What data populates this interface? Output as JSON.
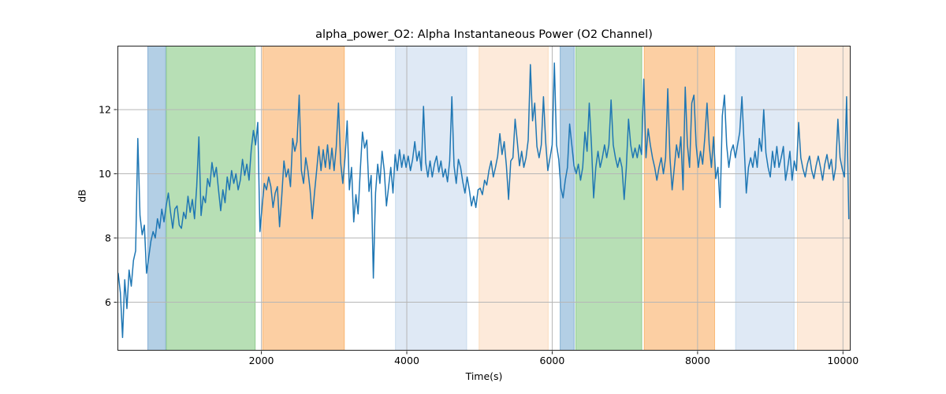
{
  "figure": {
    "title": "alpha_power_O2: Alpha Instantaneous Power (O2 Channel)",
    "xlabel": "Time(s)",
    "ylabel": "dB"
  },
  "chart_data": {
    "type": "line",
    "title": "alpha_power_O2: Alpha Instantaneous Power (O2 Channel)",
    "xlabel": "Time(s)",
    "ylabel": "dB",
    "grid": true,
    "legend": false,
    "xlim": [
      20,
      10105
    ],
    "ylim": [
      4.49,
      13.99
    ],
    "xticks": [
      2000,
      4000,
      6000,
      8000,
      10000
    ],
    "yticks": [
      6,
      8,
      10,
      12
    ],
    "colors": {
      "line": "#1f77b4",
      "grid": "#b6b6b6",
      "spine": "#222222",
      "band_blue": "#b3cfe5",
      "band_blue_edge": "#8db4d6",
      "band_green": "#b7dfb5",
      "band_green_edge": "#93cd92",
      "band_orange": "#fccfa3",
      "band_orange_edge": "#fab977",
      "band_lightblue": "#dfe9f5",
      "band_lightblue_edge": "#c9dcee",
      "band_lightorange": "#fdeada",
      "band_lightorange_edge": "#fbdfc2"
    },
    "bands": [
      {
        "name": "span-blue-1",
        "start": 433,
        "end": 688,
        "color": "#b3cfe5",
        "edge": "#8db4d6"
      },
      {
        "name": "span-green-1",
        "start": 688,
        "end": 1919,
        "color": "#b7dfb5",
        "edge": "#93cd92"
      },
      {
        "name": "span-orange-1",
        "start": 2014,
        "end": 3145,
        "color": "#fccfa3",
        "edge": "#fab977"
      },
      {
        "name": "span-lightblue-1",
        "start": 3840,
        "end": 4828,
        "color": "#dfe9f5",
        "edge": "#c9dcee"
      },
      {
        "name": "span-lightorange-1",
        "start": 4990,
        "end": 5950,
        "color": "#fdeada",
        "edge": "#fbdfc2"
      },
      {
        "name": "span-blue-2",
        "start": 6105,
        "end": 6307,
        "color": "#b3cfe5",
        "edge": "#8db4d6"
      },
      {
        "name": "span-green-2",
        "start": 6320,
        "end": 7237,
        "color": "#b7dfb5",
        "edge": "#93cd92"
      },
      {
        "name": "span-orange-2",
        "start": 7262,
        "end": 8240,
        "color": "#fccfa3",
        "edge": "#fab977"
      },
      {
        "name": "span-lightblue-2",
        "start": 8519,
        "end": 9332,
        "color": "#dfe9f5",
        "edge": "#c9dcee"
      },
      {
        "name": "span-lightorange-2",
        "start": 9368,
        "end": 10105,
        "color": "#fdeada",
        "edge": "#fbdfc2"
      }
    ],
    "series": [
      {
        "name": "alpha_power_O2",
        "t_start": 30,
        "t_step": 30,
        "values": [
          6.9,
          6.3,
          4.9,
          6.7,
          5.8,
          7.0,
          6.5,
          7.3,
          7.6,
          11.1,
          8.7,
          8.1,
          8.4,
          6.9,
          7.4,
          7.9,
          8.2,
          8.0,
          8.6,
          8.3,
          8.9,
          8.5,
          9.0,
          9.4,
          8.8,
          8.3,
          8.9,
          9.0,
          8.4,
          8.3,
          8.8,
          8.6,
          9.3,
          8.8,
          9.2,
          8.6,
          9.6,
          11.15,
          8.7,
          9.3,
          9.1,
          9.85,
          9.6,
          10.35,
          9.9,
          10.2,
          9.5,
          8.85,
          9.5,
          9.1,
          9.9,
          9.5,
          10.1,
          9.7,
          10.0,
          9.5,
          9.8,
          10.45,
          9.95,
          10.3,
          9.8,
          10.75,
          11.35,
          10.9,
          11.6,
          8.2,
          9.0,
          9.7,
          9.5,
          9.9,
          9.6,
          8.95,
          9.4,
          9.6,
          8.35,
          9.3,
          10.4,
          9.9,
          10.15,
          9.6,
          11.1,
          10.7,
          11.0,
          12.45,
          10.1,
          9.7,
          10.5,
          10.1,
          9.5,
          8.6,
          9.4,
          10.1,
          10.85,
          10.1,
          10.75,
          10.2,
          10.9,
          10.15,
          10.8,
          10.1,
          10.85,
          12.2,
          10.35,
          9.7,
          10.5,
          11.65,
          9.5,
          10.2,
          8.5,
          9.35,
          8.75,
          10.1,
          11.3,
          10.8,
          11.05,
          9.45,
          9.95,
          6.75,
          9.4,
          10.3,
          9.7,
          10.7,
          10.1,
          9.0,
          9.6,
          10.2,
          9.4,
          10.6,
          10.1,
          10.75,
          10.2,
          10.6,
          10.2,
          10.55,
          10.1,
          10.45,
          11.0,
          10.4,
          10.7,
          10.1,
          12.1,
          10.35,
          9.9,
          10.4,
          9.9,
          10.3,
          10.55,
          10.05,
          10.4,
          9.9,
          10.15,
          9.75,
          10.4,
          12.4,
          10.25,
          9.7,
          10.45,
          10.2,
          9.75,
          9.4,
          9.9,
          9.5,
          9.0,
          9.3,
          8.95,
          9.5,
          9.55,
          9.35,
          9.8,
          9.65,
          10.1,
          10.4,
          9.9,
          10.2,
          10.55,
          11.25,
          10.6,
          11.0,
          10.25,
          9.2,
          10.4,
          10.5,
          11.7,
          11.0,
          10.25,
          10.7,
          10.2,
          10.5,
          11.05,
          13.4,
          11.65,
          12.2,
          10.85,
          10.5,
          10.9,
          12.4,
          11.0,
          10.1,
          10.5,
          10.9,
          13.45,
          10.9,
          10.45,
          9.55,
          9.25,
          9.8,
          10.2,
          11.55,
          10.9,
          10.25,
          10.0,
          10.3,
          9.8,
          10.2,
          11.3,
          10.7,
          12.2,
          10.9,
          9.25,
          10.2,
          10.7,
          10.2,
          10.5,
          10.9,
          10.5,
          10.9,
          12.3,
          10.9,
          10.5,
          10.2,
          10.5,
          10.2,
          9.2,
          10.2,
          11.7,
          10.9,
          10.5,
          10.8,
          10.5,
          10.9,
          10.6,
          12.95,
          10.5,
          11.4,
          10.9,
          10.5,
          10.2,
          9.8,
          10.2,
          10.5,
          10.0,
          10.5,
          12.65,
          10.5,
          9.5,
          10.2,
          10.9,
          10.5,
          11.15,
          9.5,
          12.7,
          10.9,
          10.2,
          12.2,
          12.45,
          10.9,
          10.2,
          10.7,
          10.3,
          11.15,
          12.2,
          10.9,
          10.2,
          11.15,
          9.85,
          10.2,
          8.95,
          11.8,
          12.45,
          10.9,
          10.2,
          10.7,
          10.9,
          10.5,
          10.9,
          11.3,
          12.4,
          10.9,
          9.4,
          10.2,
          10.5,
          10.2,
          10.7,
          10.2,
          11.1,
          10.7,
          12.0,
          10.65,
          10.2,
          9.9,
          10.7,
          10.2,
          10.85,
          10.2,
          10.5,
          10.85,
          9.8,
          10.2,
          10.7,
          9.8,
          10.4,
          10.1,
          11.6,
          10.5,
          10.15,
          9.9,
          10.3,
          10.55,
          10.1,
          9.85,
          10.25,
          10.55,
          10.2,
          9.8,
          10.3,
          10.6,
          10.15,
          10.45,
          9.8,
          10.2,
          11.7,
          10.5,
          10.15,
          9.9,
          12.4,
          8.6
        ]
      }
    ]
  }
}
